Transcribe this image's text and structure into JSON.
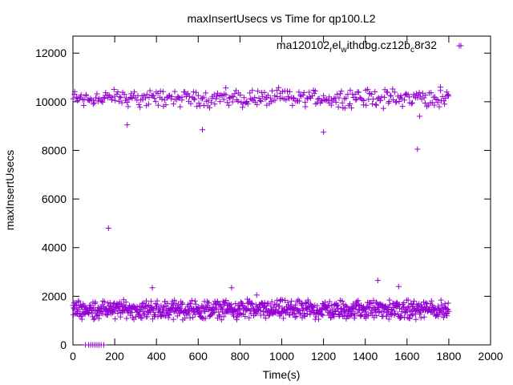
{
  "chart_data": {
    "type": "scatter",
    "title": "maxInsertUsecs vs Time for qp100.L2",
    "xlabel": "Time(s)",
    "ylabel": "maxInsertUsecs",
    "xlim": [
      0,
      2000
    ],
    "ylim": [
      0,
      12700
    ],
    "xticks": [
      0,
      200,
      400,
      600,
      800,
      1000,
      1200,
      1400,
      1600,
      1800,
      2000
    ],
    "yticks": [
      0,
      2000,
      4000,
      6000,
      8000,
      10000,
      12000
    ],
    "grid": false,
    "legend_position": "top-right",
    "legend": {
      "label_parts": [
        {
          "text": "ma120102",
          "sub": false
        },
        {
          "text": "r",
          "sub": true
        },
        {
          "text": "el",
          "sub": false
        },
        {
          "text": "w",
          "sub": true
        },
        {
          "text": "ithdbg.cz12b",
          "sub": false
        },
        {
          "text": "c",
          "sub": true
        },
        {
          "text": "8r32",
          "sub": false
        }
      ]
    },
    "series": [
      {
        "color": "#9400d3",
        "marker": "plus",
        "bands": [
          {
            "x_range": [
              0,
              1800
            ],
            "y_center": 10150,
            "y_spread": 450,
            "step": 5
          },
          {
            "x_range": [
              0,
              1800
            ],
            "y_center": 1450,
            "y_spread": 450,
            "step": 2
          }
        ],
        "points": [
          [
            60,
            0
          ],
          [
            75,
            0
          ],
          [
            85,
            0
          ],
          [
            95,
            0
          ],
          [
            105,
            0
          ],
          [
            115,
            0
          ],
          [
            125,
            0
          ],
          [
            135,
            0
          ],
          [
            148,
            0
          ],
          [
            170,
            4800
          ],
          [
            260,
            9050
          ],
          [
            620,
            8850
          ],
          [
            1200,
            8750
          ],
          [
            1650,
            8050
          ],
          [
            1660,
            9400
          ],
          [
            380,
            2350
          ],
          [
            760,
            2350
          ],
          [
            1460,
            2650
          ],
          [
            1560,
            2400
          ],
          [
            880,
            2050
          ],
          [
            1850,
            12300
          ],
          [
            1760,
            10600
          ],
          [
            1790,
            10400
          ]
        ]
      }
    ]
  }
}
